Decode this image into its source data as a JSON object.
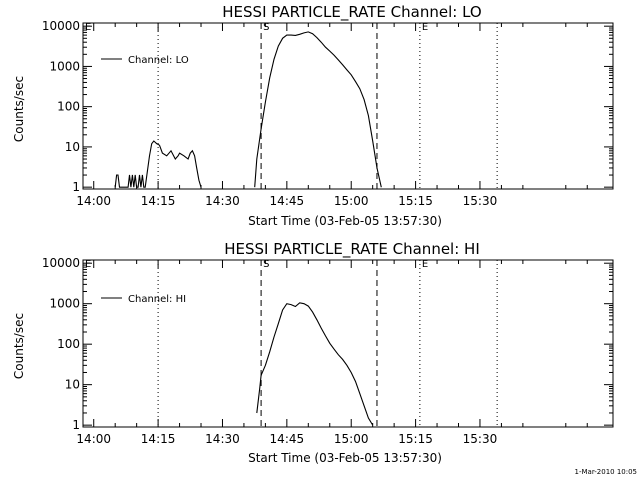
{
  "footer_timestamp": "1-Mar-2010 10:05",
  "colors": {
    "background": "#ffffff",
    "ink": "#000000"
  },
  "chart_data": [
    {
      "type": "line",
      "title": "HESSI PARTICLE_RATE Channel: LO",
      "xlabel": "Start Time (03-Feb-05 13:57:30)",
      "ylabel": "Counts/sec",
      "yscale": "log",
      "xlim": [
        "13:57:30",
        "16:01"
      ],
      "ylim": [
        0.9,
        12000
      ],
      "x_ticks": [
        "14:00",
        "14:15",
        "14:30",
        "14:45",
        "15:00",
        "15:15",
        "15:30"
      ],
      "y_ticks": [
        1,
        10,
        100,
        1000,
        10000
      ],
      "y_tick_labels": [
        "1",
        "10",
        "100",
        "1000",
        "10000"
      ],
      "legend": {
        "position": "top-left",
        "entries": [
          "Channel: LO"
        ]
      },
      "markers": [
        {
          "time": "13:57:30",
          "style": "dotted",
          "label": "E"
        },
        {
          "time": "14:15",
          "style": "dotted",
          "label": ""
        },
        {
          "time": "14:39",
          "style": "dashed",
          "label": "S"
        },
        {
          "time": "15:06",
          "style": "dashed",
          "label": ""
        },
        {
          "time": "15:16",
          "style": "dotted",
          "label": "E"
        },
        {
          "time": "15:34",
          "style": "dotted",
          "label": ""
        }
      ],
      "series": [
        {
          "name": "Channel: LO",
          "x": [
            "14:05",
            "14:05:20",
            "14:05:40",
            "14:06",
            "14:06:20",
            "14:08",
            "14:08:20",
            "14:08:40",
            "14:09",
            "14:09:20",
            "14:09:40",
            "14:10",
            "14:10:20",
            "14:10:40",
            "14:11",
            "14:11:20",
            "14:11:40",
            "14:12",
            "14:13",
            "14:13:30",
            "14:14",
            "14:14:40",
            "14:15:20",
            "14:16",
            "14:17",
            "14:18",
            "14:19",
            "14:19:40",
            "14:20",
            "14:21",
            "14:22",
            "14:22:30",
            "14:23",
            "14:23:30",
            "14:24",
            "14:24:30",
            "14:25"
          ],
          "y": [
            1,
            2,
            2,
            1,
            1,
            1,
            2,
            1,
            2,
            1,
            2,
            1,
            1,
            2,
            1,
            2,
            1,
            1,
            6,
            12,
            14,
            12,
            11,
            7,
            6,
            8,
            5,
            6,
            7,
            6,
            5,
            7,
            8,
            6,
            3,
            1.5,
            1
          ]
        },
        {
          "name": "Channel: LO",
          "x": [
            "14:37:30",
            "14:38",
            "14:39",
            "14:40",
            "14:41",
            "14:42",
            "14:43",
            "14:44",
            "14:45",
            "14:46",
            "14:47",
            "14:48",
            "14:49",
            "14:50",
            "14:51",
            "14:52",
            "14:53",
            "14:54",
            "14:55",
            "14:56",
            "14:57",
            "14:58",
            "14:59",
            "15:00",
            "15:01",
            "15:02",
            "15:03",
            "15:04",
            "15:05",
            "15:06",
            "15:07"
          ],
          "y": [
            1,
            5,
            28,
            130,
            520,
            1500,
            3200,
            5000,
            6000,
            6000,
            5900,
            6300,
            6800,
            7200,
            6500,
            5200,
            4000,
            3000,
            2400,
            1900,
            1450,
            1100,
            820,
            620,
            420,
            280,
            150,
            60,
            14,
            3,
            1
          ]
        }
      ]
    },
    {
      "type": "line",
      "title": "HESSI PARTICLE_RATE Channel: HI",
      "xlabel": "Start Time (03-Feb-05 13:57:30)",
      "ylabel": "Counts/sec",
      "yscale": "log",
      "xlim": [
        "13:57:30",
        "16:01"
      ],
      "ylim": [
        0.9,
        12000
      ],
      "x_ticks": [
        "14:00",
        "14:15",
        "14:30",
        "14:45",
        "15:00",
        "15:15",
        "15:30"
      ],
      "y_ticks": [
        1,
        10,
        100,
        1000,
        10000
      ],
      "y_tick_labels": [
        "1",
        "10",
        "100",
        "1000",
        "10000"
      ],
      "legend": {
        "position": "top-left",
        "entries": [
          "Channel: HI"
        ]
      },
      "markers": [
        {
          "time": "13:57:30",
          "style": "dotted",
          "label": "E"
        },
        {
          "time": "14:15",
          "style": "dotted",
          "label": ""
        },
        {
          "time": "14:39",
          "style": "dashed",
          "label": "S"
        },
        {
          "time": "15:06",
          "style": "dashed",
          "label": ""
        },
        {
          "time": "15:16",
          "style": "dotted",
          "label": "E"
        },
        {
          "time": "15:34",
          "style": "dotted",
          "label": ""
        }
      ],
      "series": [
        {
          "name": "Channel: HI",
          "x": [
            "14:38",
            "14:38:40",
            "14:39",
            "14:40",
            "14:41",
            "14:42",
            "14:43",
            "14:44",
            "14:45",
            "14:46",
            "14:47",
            "14:48",
            "14:49",
            "14:50",
            "14:51",
            "14:52",
            "14:53",
            "14:54",
            "14:55",
            "14:56",
            "14:57",
            "14:58",
            "14:59",
            "15:00",
            "15:01",
            "15:02",
            "15:03",
            "15:04",
            "15:05"
          ],
          "y": [
            2,
            8,
            17,
            30,
            65,
            150,
            320,
            700,
            1000,
            950,
            850,
            1050,
            1000,
            870,
            620,
            400,
            250,
            160,
            105,
            75,
            55,
            42,
            30,
            20,
            12,
            6,
            3,
            1.5,
            1
          ]
        }
      ]
    }
  ]
}
